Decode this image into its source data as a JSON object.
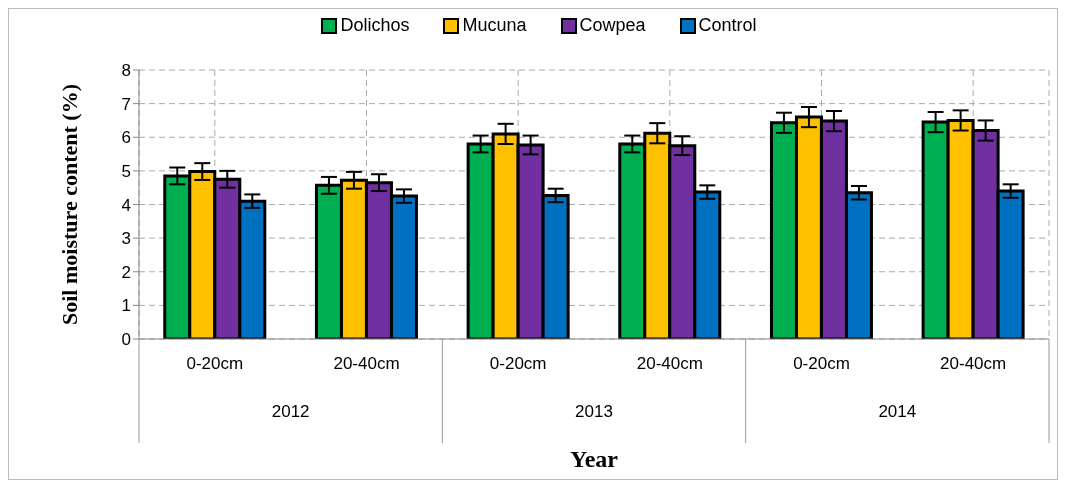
{
  "chart_data": {
    "type": "bar",
    "xlabel": "Year",
    "ylabel": "Soil moisture content (%)",
    "categories": [
      "0-20cm",
      "20-40cm",
      "0-20cm",
      "20-40cm",
      "0-20cm",
      "20-40cm"
    ],
    "annotations": [
      "2012",
      "2013",
      "2014"
    ],
    "series": [
      {
        "name": "Dolichos",
        "color": "#00b050",
        "values": [
          4.85,
          4.57,
          5.8,
          5.8,
          6.43,
          6.45
        ],
        "errors": [
          0.25,
          0.25,
          0.25,
          0.25,
          0.3,
          0.3
        ]
      },
      {
        "name": "Mucuna",
        "color": "#ffc000",
        "values": [
          4.98,
          4.72,
          6.1,
          6.12,
          6.6,
          6.5
        ],
        "errors": [
          0.25,
          0.25,
          0.3,
          0.3,
          0.3,
          0.3
        ]
      },
      {
        "name": "Cowpea",
        "color": "#7030a0",
        "values": [
          4.75,
          4.65,
          5.77,
          5.75,
          6.48,
          6.2
        ],
        "errors": [
          0.25,
          0.25,
          0.28,
          0.28,
          0.3,
          0.3
        ]
      },
      {
        "name": "Control",
        "color": "#0070c0",
        "values": [
          4.1,
          4.25,
          4.27,
          4.37,
          4.35,
          4.4
        ],
        "errors": [
          0.2,
          0.2,
          0.2,
          0.2,
          0.2,
          0.2
        ]
      }
    ],
    "ylim": [
      0,
      8
    ],
    "yticks": [
      0,
      1,
      2,
      3,
      4,
      5,
      6,
      7,
      8
    ],
    "grid": true,
    "legend": "top"
  }
}
